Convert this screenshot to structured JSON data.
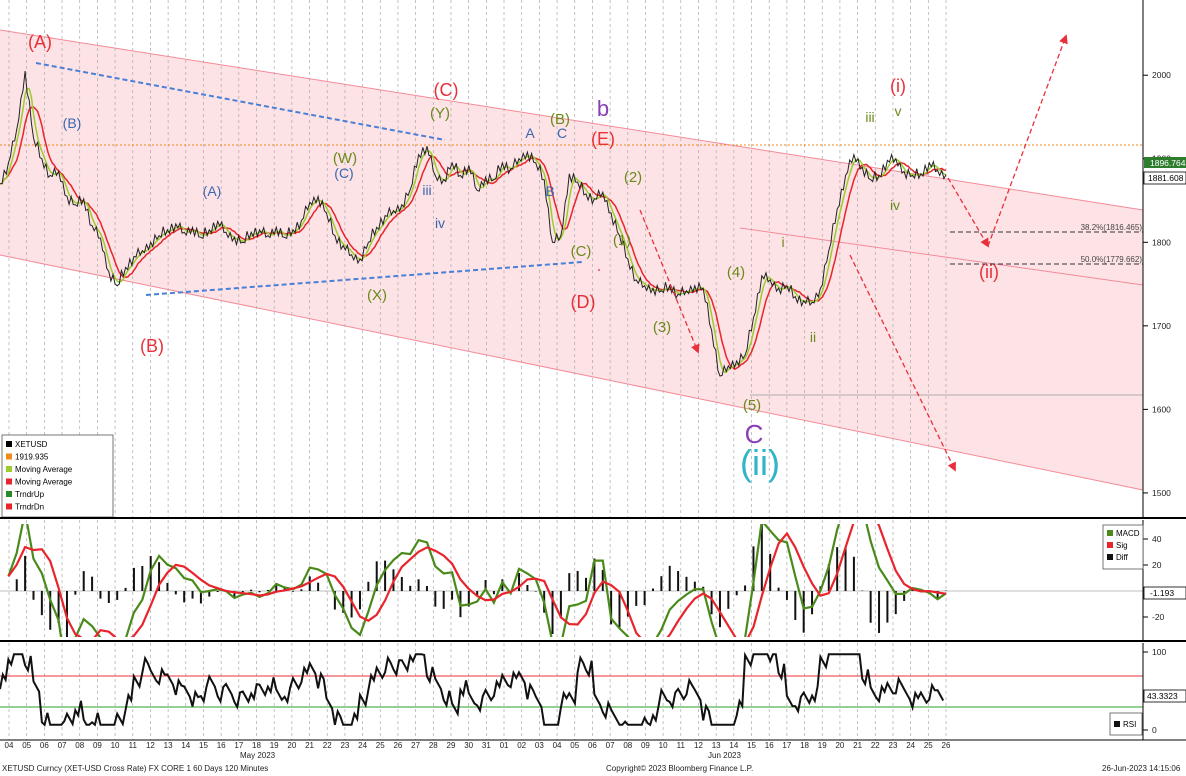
{
  "chart_data": {
    "type": "line",
    "instrument": "XETUSD",
    "ylim": [
      1470,
      2090
    ],
    "yticks": [
      "2000",
      "1900",
      "1800",
      "1700",
      "1600",
      "1500"
    ],
    "last_price_label": "1896.764",
    "current_price_label": "1881.608",
    "fib_levels": [
      {
        "label": "38.2%(1816.465)",
        "value": 1816.465
      },
      {
        "label": "50.0%(1779.662)",
        "value": 1779.662
      }
    ],
    "resistance_line": 1919.935,
    "x_ticks": [
      "04",
      "05",
      "06",
      "07",
      "08",
      "09",
      "10",
      "11",
      "12",
      "13",
      "14",
      "15",
      "16",
      "17",
      "18",
      "19",
      "20",
      "21",
      "22",
      "23",
      "24",
      "25",
      "26",
      "27",
      "28",
      "29",
      "30",
      "31",
      "01",
      "02",
      "03",
      "04",
      "05",
      "06",
      "07",
      "08",
      "09",
      "10",
      "11",
      "12",
      "13",
      "14",
      "15",
      "16",
      "17",
      "18",
      "19",
      "20",
      "21",
      "22",
      "23",
      "24",
      "25",
      "26"
    ],
    "month_labels": [
      "May 2023",
      "Jun 2023"
    ],
    "price_series": [
      1870,
      1895,
      1935,
      2005,
      1925,
      1900,
      1880,
      1885,
      1855,
      1845,
      1852,
      1820,
      1805,
      1765,
      1748,
      1770,
      1783,
      1790,
      1800,
      1808,
      1815,
      1822,
      1812,
      1818,
      1806,
      1815,
      1825,
      1812,
      1806,
      1800,
      1812,
      1815,
      1808,
      1818,
      1806,
      1815,
      1826,
      1848,
      1855,
      1835,
      1808,
      1796,
      1785,
      1780,
      1800,
      1818,
      1832,
      1838,
      1845,
      1863,
      1905,
      1915,
      1880,
      1875,
      1895,
      1880,
      1892,
      1862,
      1878,
      1875,
      1895,
      1888,
      1900,
      1908,
      1895,
      1875,
      1800,
      1808,
      1882,
      1872,
      1858,
      1852,
      1860,
      1835,
      1808,
      1780,
      1755,
      1748,
      1745,
      1742,
      1748,
      1738,
      1742,
      1748,
      1745,
      1695,
      1640,
      1652,
      1658,
      1665,
      1710,
      1760,
      1755,
      1745,
      1748,
      1735,
      1730,
      1728,
      1745,
      1790,
      1840,
      1880,
      1905,
      1890,
      1875,
      1880,
      1898,
      1900,
      1885,
      1880,
      1882,
      1895,
      1886,
      1881
    ],
    "macd_yticks": [
      "40",
      "20",
      "-20"
    ],
    "macd_current_label": "-1.193",
    "rsi_yticks": [
      "100",
      "0"
    ],
    "rsi_current_label": "43.3323",
    "legend_price": [
      "XETUSD",
      "1919.935",
      "Moving Average",
      "Moving Average",
      "TrndrUp",
      "TrndrDn"
    ],
    "legend_macd": [
      "MACD",
      "Sig",
      "Diff"
    ],
    "legend_rsi": [
      "RSI"
    ],
    "wave_labels": [
      {
        "text": "(A)",
        "color": "#e8303a"
      },
      {
        "text": "(B)",
        "color": "#e8303a"
      },
      {
        "text": "(C)",
        "color": "#e8303a"
      },
      {
        "text": "(D)",
        "color": "#e8303a"
      },
      {
        "text": "(E)",
        "color": "#e8303a"
      },
      {
        "text": "(i)",
        "color": "#e8303a"
      },
      {
        "text": "(ii)",
        "color": "#e8303a"
      },
      {
        "text": "b",
        "color": "#8a3fb8"
      },
      {
        "text": "C",
        "color": "#8a3fb8"
      },
      {
        "text": "(ii)",
        "color": "#2eb6c8"
      },
      {
        "text": "(B)",
        "color": "#6a8a1a"
      },
      {
        "text": "(Y)",
        "color": "#6a8a1a"
      },
      {
        "text": "(W)",
        "color": "#6a8a1a"
      },
      {
        "text": "(X)",
        "color": "#6a8a1a"
      },
      {
        "text": "(C)",
        "color": "#6a8a1a"
      },
      {
        "text": "(1)",
        "color": "#6a8a1a"
      },
      {
        "text": "(2)",
        "color": "#6a8a1a"
      },
      {
        "text": "(3)",
        "color": "#6a8a1a"
      },
      {
        "text": "(4)",
        "color": "#6a8a1a"
      },
      {
        "text": "(5)",
        "color": "#6a8a1a"
      },
      {
        "text": "iii",
        "color": "#6a8a1a"
      },
      {
        "text": "v",
        "color": "#6a8a1a"
      },
      {
        "text": "iv",
        "color": "#6a8a1a"
      },
      {
        "text": "i",
        "color": "#6a8a1a"
      },
      {
        "text": "ii",
        "color": "#6a8a1a"
      },
      {
        "text": "(A)",
        "color": "#3a66b0"
      },
      {
        "text": "(B)",
        "color": "#3a66b0"
      },
      {
        "text": "(C)",
        "color": "#3a66b0"
      },
      {
        "text": "iii",
        "color": "#3a66b0"
      },
      {
        "text": "iv",
        "color": "#3a66b0"
      },
      {
        "text": "A",
        "color": "#3a66b0"
      },
      {
        "text": "B",
        "color": "#3a66b0"
      },
      {
        "text": "C",
        "color": "#3a66b0"
      }
    ]
  },
  "footer": {
    "left": "XETUSD Curncy (XET-USD Cross Rate) FX CORE 1 60 Days 120 Minutes",
    "center": "Copyright© 2023 Bloomberg Finance L.P.",
    "right": "26-Jun-2023 14:15:06"
  },
  "colors": {
    "channel_fill": "#fde3e6",
    "channel_line": "#f58a98",
    "price": "#222222",
    "ma_fast": "#9ccc2c",
    "ma_slow": "#e8242c",
    "resistance": "#f08a1c",
    "triangle": "#4a7fd6"
  }
}
